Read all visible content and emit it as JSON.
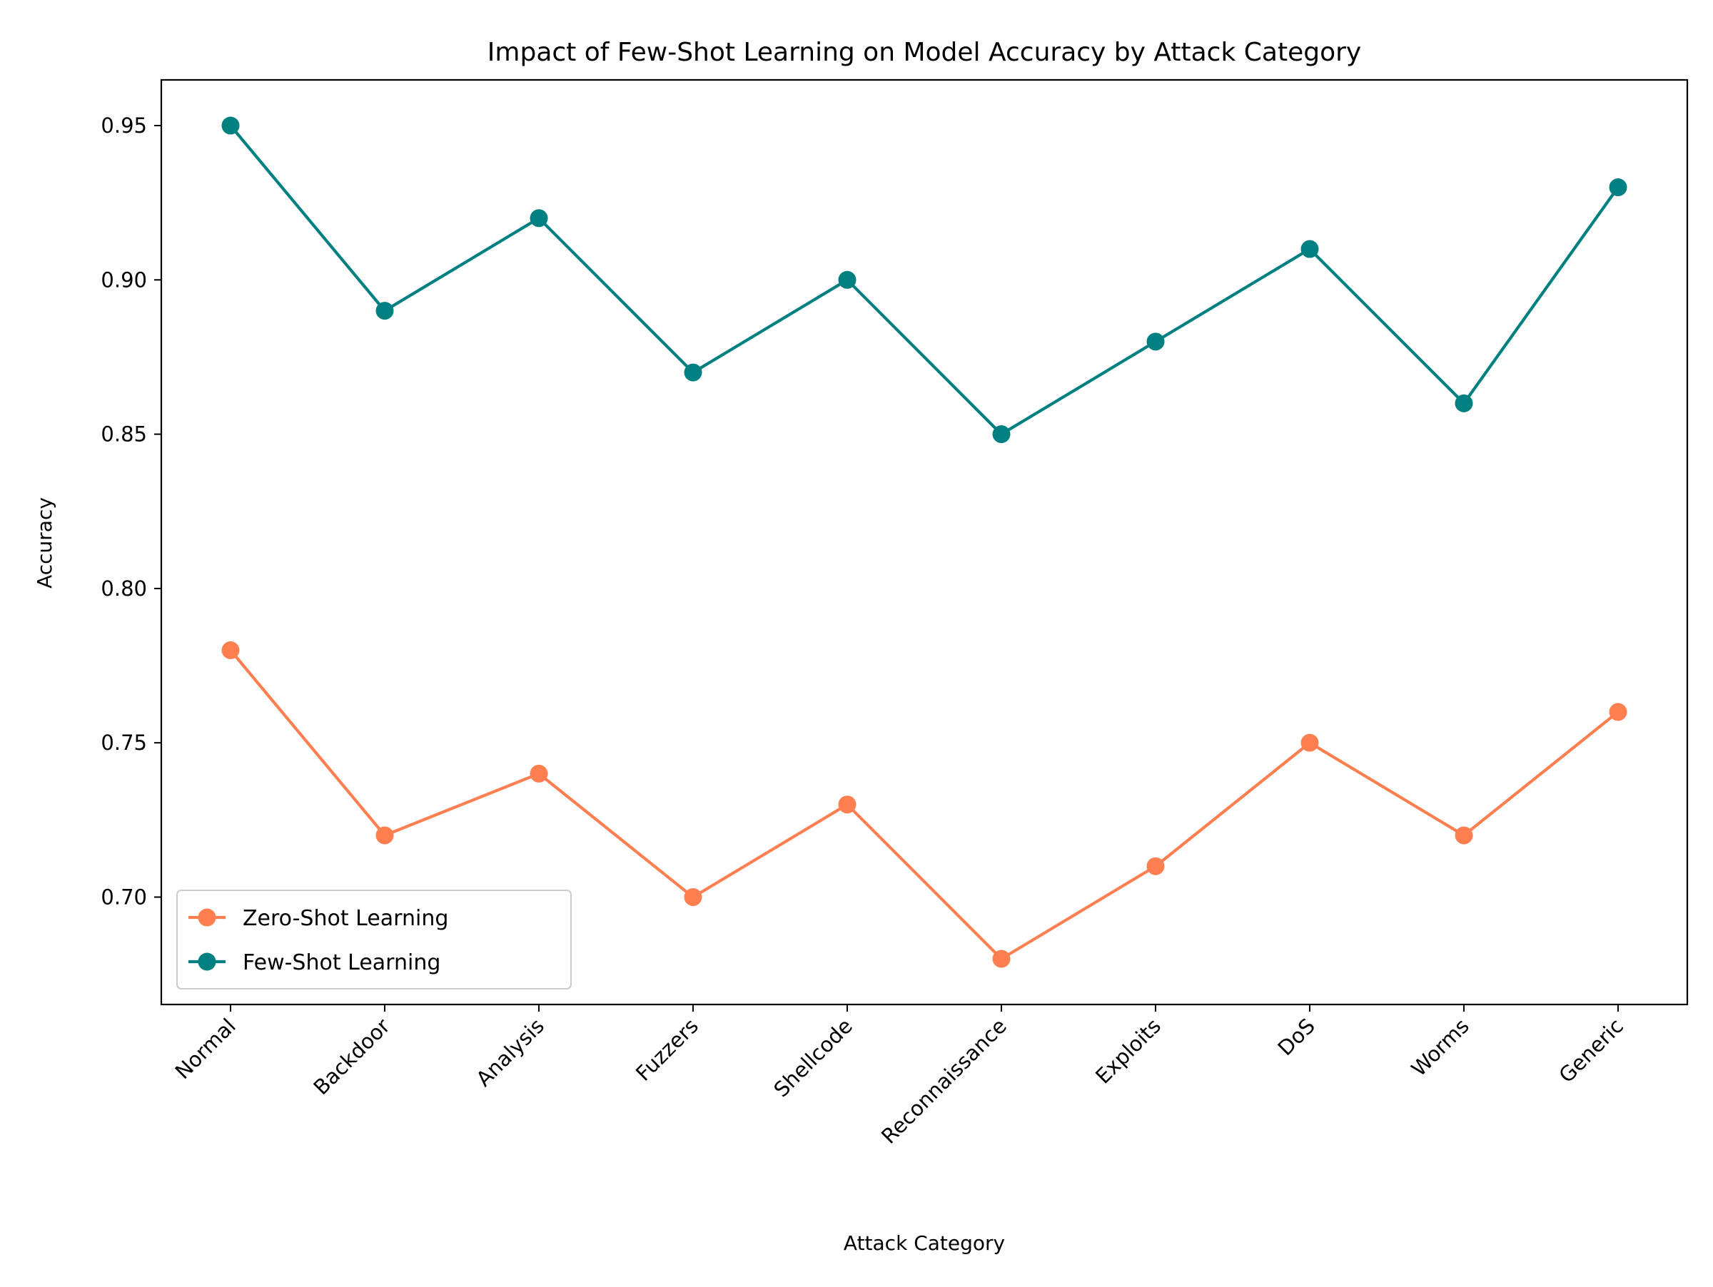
{
  "chart_data": {
    "type": "line",
    "title": "Impact of Few-Shot Learning on Model Accuracy by Attack Category",
    "xlabel": "Attack Category",
    "ylabel": "Accuracy",
    "categories": [
      "Normal",
      "Backdoor",
      "Analysis",
      "Fuzzers",
      "Shellcode",
      "Reconnaissance",
      "Exploits",
      "DoS",
      "Worms",
      "Generic"
    ],
    "yticks": [
      "0.70",
      "0.75",
      "0.80",
      "0.85",
      "0.90",
      "0.95"
    ],
    "ylim": [
      0.6652,
      0.9648
    ],
    "grid": false,
    "legend_position": "lower-left",
    "series": [
      {
        "name": "Zero-Shot Learning",
        "color": "#FF7F50",
        "marker": "circle",
        "values": [
          0.78,
          0.72,
          0.74,
          0.7,
          0.73,
          0.68,
          0.71,
          0.75,
          0.72,
          0.76
        ]
      },
      {
        "name": "Few-Shot Learning",
        "color": "#008080",
        "marker": "circle",
        "values": [
          0.95,
          0.89,
          0.92,
          0.87,
          0.9,
          0.85,
          0.88,
          0.91,
          0.86,
          0.93
        ]
      }
    ]
  }
}
